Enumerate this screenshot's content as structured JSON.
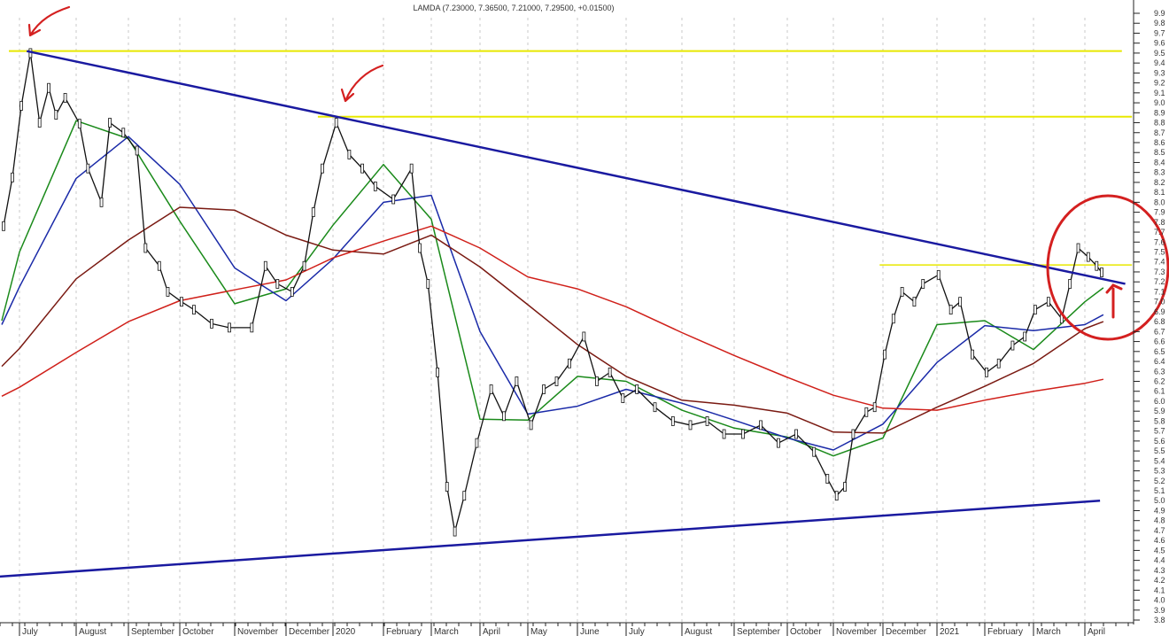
{
  "chart_data": {
    "type": "line",
    "title": "LAMDA (7.23000, 7.36500, 7.21000, 7.29500, +0.01500)",
    "ylim": [
      3.8,
      9.9
    ],
    "y_ticks": [
      "9.9",
      "9.8",
      "9.7",
      "9.6",
      "9.5",
      "9.4",
      "9.3",
      "9.2",
      "9.1",
      "9.0",
      "8.9",
      "8.8",
      "8.7",
      "8.6",
      "8.5",
      "8.4",
      "8.3",
      "8.2",
      "8.1",
      "8.0",
      "7.9",
      "7.8",
      "7.7",
      "7.6",
      "7.5",
      "7.4",
      "7.3",
      "7.2",
      "7.1",
      "7.0",
      "6.9",
      "6.8",
      "6.7",
      "6.6",
      "6.5",
      "6.4",
      "6.3",
      "6.2",
      "6.1",
      "6.0",
      "5.9",
      "5.8",
      "5.7",
      "5.6",
      "5.5",
      "5.4",
      "5.3",
      "5.2",
      "5.1",
      "5.0",
      "4.9",
      "4.8",
      "4.7",
      "4.6",
      "4.5",
      "4.4",
      "4.3",
      "4.2",
      "4.1",
      "4.0",
      "3.9",
      "3.8"
    ],
    "x_labels": [
      {
        "label": "July",
        "date": "2019-07-01"
      },
      {
        "label": "August",
        "date": "2019-08-01"
      },
      {
        "label": "September",
        "date": "2019-09-01"
      },
      {
        "label": "October",
        "date": "2019-10-01"
      },
      {
        "label": "November",
        "date": "2019-11-01"
      },
      {
        "label": "December",
        "date": "2019-12-01"
      },
      {
        "label": "2020",
        "date": "2020-01-01"
      },
      {
        "label": "February",
        "date": "2020-02-01"
      },
      {
        "label": "March",
        "date": "2020-03-01"
      },
      {
        "label": "April",
        "date": "2020-04-01"
      },
      {
        "label": "May",
        "date": "2020-05-01"
      },
      {
        "label": "June",
        "date": "2020-06-01"
      },
      {
        "label": "July",
        "date": "2020-07-01"
      },
      {
        "label": "August",
        "date": "2020-08-01"
      },
      {
        "label": "September",
        "date": "2020-09-01"
      },
      {
        "label": "October",
        "date": "2020-10-01"
      },
      {
        "label": "November",
        "date": "2020-11-01"
      },
      {
        "label": "December",
        "date": "2020-12-01"
      },
      {
        "label": "2021",
        "date": "2021-01-01"
      },
      {
        "label": "February",
        "date": "2021-02-01"
      },
      {
        "label": "March",
        "date": "2021-03-01"
      },
      {
        "label": "April",
        "date": "2021-04-01"
      }
    ],
    "grid": "vertical dashed at months",
    "price": {
      "color": "#111111",
      "points": [
        [
          "2019-06-22",
          7.76
        ],
        [
          "2019-06-27",
          8.25
        ],
        [
          "2019-07-02",
          8.97
        ],
        [
          "2019-07-07",
          9.5
        ],
        [
          "2019-07-12",
          8.8
        ],
        [
          "2019-07-17",
          9.15
        ],
        [
          "2019-07-21",
          8.88
        ],
        [
          "2019-07-26",
          9.05
        ],
        [
          "2019-08-03",
          8.79
        ],
        [
          "2019-08-08",
          8.34
        ],
        [
          "2019-08-16",
          8.0
        ],
        [
          "2019-08-21",
          8.8
        ],
        [
          "2019-08-29",
          8.7
        ],
        [
          "2019-09-06",
          8.52
        ],
        [
          "2019-09-11",
          7.54
        ],
        [
          "2019-09-19",
          7.36
        ],
        [
          "2019-09-24",
          7.1
        ],
        [
          "2019-10-02",
          7.0
        ],
        [
          "2019-10-09",
          6.92
        ],
        [
          "2019-10-19",
          6.78
        ],
        [
          "2019-10-29",
          6.74
        ],
        [
          "2019-11-11",
          6.74
        ],
        [
          "2019-11-19",
          7.36
        ],
        [
          "2019-11-26",
          7.18
        ],
        [
          "2019-12-05",
          7.1
        ],
        [
          "2019-12-13",
          7.36
        ],
        [
          "2019-12-19",
          7.9
        ],
        [
          "2019-12-25",
          8.34
        ],
        [
          "2020-01-03",
          8.8
        ],
        [
          "2020-01-11",
          8.48
        ],
        [
          "2020-01-19",
          8.34
        ],
        [
          "2020-01-27",
          8.16
        ],
        [
          "2020-02-07",
          8.03
        ],
        [
          "2020-02-18",
          8.34
        ],
        [
          "2020-02-23",
          7.54
        ],
        [
          "2020-02-28",
          7.18
        ],
        [
          "2020-03-05",
          6.29
        ],
        [
          "2020-03-11",
          5.14
        ],
        [
          "2020-03-16",
          4.69
        ],
        [
          "2020-03-22",
          5.05
        ],
        [
          "2020-03-30",
          5.58
        ],
        [
          "2020-04-08",
          6.12
        ],
        [
          "2020-04-16",
          5.85
        ],
        [
          "2020-04-24",
          6.2
        ],
        [
          "2020-05-03",
          5.76
        ],
        [
          "2020-05-11",
          6.12
        ],
        [
          "2020-05-19",
          6.2
        ],
        [
          "2020-05-27",
          6.38
        ],
        [
          "2020-06-05",
          6.65
        ],
        [
          "2020-06-13",
          6.2
        ],
        [
          "2020-06-21",
          6.29
        ],
        [
          "2020-06-29",
          6.03
        ],
        [
          "2020-07-07",
          6.12
        ],
        [
          "2020-07-17",
          5.94
        ],
        [
          "2020-07-27",
          5.8
        ],
        [
          "2020-08-06",
          5.76
        ],
        [
          "2020-08-16",
          5.8
        ],
        [
          "2020-08-26",
          5.67
        ],
        [
          "2020-09-06",
          5.67
        ],
        [
          "2020-09-16",
          5.76
        ],
        [
          "2020-09-26",
          5.58
        ],
        [
          "2020-10-07",
          5.67
        ],
        [
          "2020-10-19",
          5.49
        ],
        [
          "2020-10-28",
          5.22
        ],
        [
          "2020-11-03",
          5.05
        ],
        [
          "2020-11-08",
          5.14
        ],
        [
          "2020-11-13",
          5.67
        ],
        [
          "2020-11-21",
          5.89
        ],
        [
          "2020-11-26",
          5.94
        ],
        [
          "2020-12-02",
          6.47
        ],
        [
          "2020-12-07",
          6.83
        ],
        [
          "2020-12-12",
          7.1
        ],
        [
          "2020-12-19",
          7.0
        ],
        [
          "2020-12-24",
          7.18
        ],
        [
          "2021-01-02",
          7.27
        ],
        [
          "2021-01-10",
          6.92
        ],
        [
          "2021-01-16",
          7.0
        ],
        [
          "2021-01-24",
          6.47
        ],
        [
          "2021-02-02",
          6.29
        ],
        [
          "2021-02-09",
          6.38
        ],
        [
          "2021-02-17",
          6.56
        ],
        [
          "2021-02-24",
          6.65
        ],
        [
          "2021-03-02",
          6.92
        ],
        [
          "2021-03-10",
          7.0
        ],
        [
          "2021-03-18",
          6.83
        ],
        [
          "2021-03-23",
          7.18
        ],
        [
          "2021-03-28",
          7.54
        ],
        [
          "2021-04-03",
          7.45
        ],
        [
          "2021-04-08",
          7.36
        ],
        [
          "2021-04-11",
          7.295
        ]
      ]
    },
    "ma_dates": [
      "2019-06-21",
      "2019-07-01",
      "2019-08-01",
      "2019-09-01",
      "2019-10-01",
      "2019-11-01",
      "2019-12-01",
      "2020-01-01",
      "2020-02-01",
      "2020-03-01",
      "2020-04-01",
      "2020-05-01",
      "2020-06-01",
      "2020-07-01",
      "2020-08-01",
      "2020-09-01",
      "2020-10-01",
      "2020-11-01",
      "2020-12-01",
      "2021-01-01",
      "2021-02-01",
      "2021-03-01",
      "2021-04-01",
      "2021-04-12"
    ],
    "moving_averages": [
      {
        "color": "#1a8a1a",
        "values": [
          6.81,
          7.5,
          8.82,
          8.64,
          7.81,
          6.98,
          7.13,
          7.77,
          8.38,
          7.83,
          5.82,
          5.81,
          6.25,
          6.2,
          5.91,
          5.73,
          5.64,
          5.45,
          5.63,
          6.77,
          6.81,
          6.52,
          7.0,
          7.14
        ]
      },
      {
        "color": "#1a2aa8",
        "values": [
          6.77,
          7.15,
          8.24,
          8.66,
          8.18,
          7.34,
          7.01,
          7.43,
          8.0,
          8.07,
          6.7,
          5.87,
          5.95,
          6.12,
          5.98,
          5.81,
          5.63,
          5.51,
          5.77,
          6.39,
          6.76,
          6.71,
          6.77,
          6.87
        ]
      },
      {
        "color": "#7a1a12",
        "values": [
          6.35,
          6.53,
          7.23,
          7.62,
          7.95,
          7.92,
          7.67,
          7.52,
          7.48,
          7.67,
          7.35,
          6.97,
          6.57,
          6.25,
          6.01,
          5.96,
          5.88,
          5.69,
          5.68,
          5.94,
          6.15,
          6.38,
          6.73,
          6.8
        ]
      },
      {
        "color": "#d0201a",
        "values": [
          6.05,
          6.14,
          6.49,
          6.8,
          7.01,
          7.12,
          7.22,
          7.44,
          7.61,
          7.76,
          7.54,
          7.25,
          7.13,
          6.95,
          6.69,
          6.46,
          6.24,
          6.06,
          5.93,
          5.91,
          6.01,
          6.1,
          6.18,
          6.22
        ]
      }
    ],
    "trendlines": [
      {
        "color": "#1a1aa0",
        "from": [
          "2019-07-05",
          9.52
        ],
        "to": [
          "2021-04-25",
          7.18
        ]
      },
      {
        "color": "#1a1aa0",
        "from": [
          "2019-06-14",
          4.23
        ],
        "to": [
          "2021-04-10",
          5.0
        ]
      }
    ],
    "horizontal_lines": [
      {
        "color": "#e8e800",
        "price": 9.52,
        "from": "2019-06-25",
        "to": "2021-04-23"
      },
      {
        "color": "#e8e800",
        "price": 8.86,
        "from": "2019-12-22",
        "to": "2021-04-29"
      },
      {
        "color": "#e8e800",
        "price": 7.37,
        "from": "2020-11-29",
        "to": "2021-04-29"
      }
    ],
    "annotation_color": "#d42020"
  }
}
